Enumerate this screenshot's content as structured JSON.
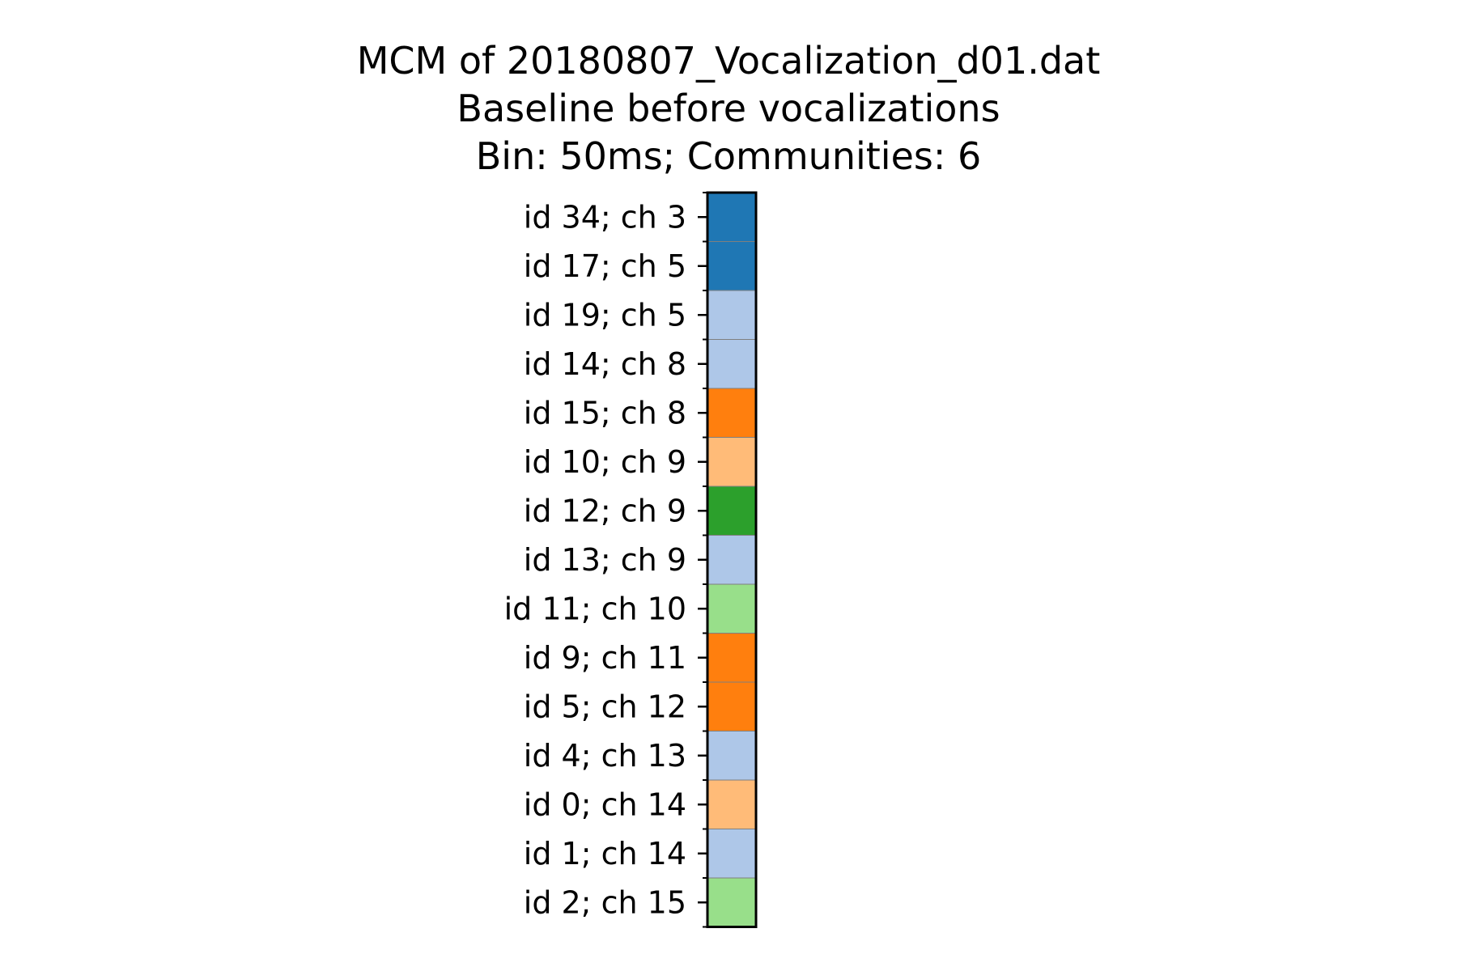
{
  "chart_data": {
    "type": "heatmap",
    "title_lines": [
      "MCM of 20180807_Vocalization_d01.dat",
      "Baseline before vocalizations",
      "Bin: 50ms; Communities: 6"
    ],
    "rows": [
      "id 34; ch 3",
      "id 17; ch 5",
      "id 19; ch 5",
      "id 14; ch 8",
      "id 15; ch 8",
      "id 10; ch 9",
      "id 12; ch 9",
      "id 13; ch 9",
      "id 11; ch 10",
      "id 9; ch 11",
      "id 5; ch 12",
      "id 4; ch 13",
      "id 0; ch 14",
      "id 1; ch 14",
      "id 2; ch 15"
    ],
    "community": [
      0,
      0,
      1,
      1,
      2,
      3,
      4,
      1,
      5,
      2,
      2,
      1,
      3,
      1,
      5
    ],
    "community_colors": [
      "#1f77b4",
      "#aec7e8",
      "#ff7f0e",
      "#ffbb78",
      "#2ca02c",
      "#98df8a"
    ],
    "grid": false
  }
}
